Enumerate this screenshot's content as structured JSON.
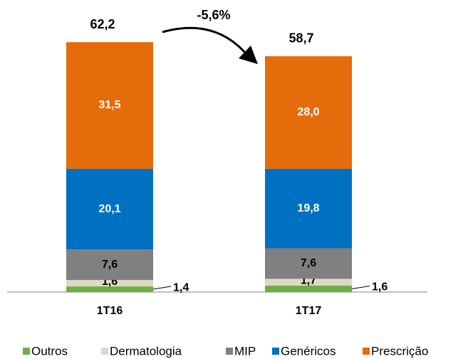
{
  "chart_data": {
    "type": "stacked-bar",
    "categories": [
      "1T16",
      "1T17"
    ],
    "series": [
      {
        "name": "Outros",
        "color": "#70ad47",
        "values": [
          1.4,
          1.6
        ],
        "value_labels": [
          "1,4",
          "1,6"
        ]
      },
      {
        "name": "Dermatologia",
        "color": "#ddd9c3",
        "values": [
          1.6,
          1.7
        ],
        "value_labels": [
          "1,6",
          "1,7"
        ]
      },
      {
        "name": "MIP",
        "color": "#808080",
        "values": [
          7.6,
          7.6
        ],
        "value_labels": [
          "7,6",
          "7,6"
        ]
      },
      {
        "name": "Genéricos",
        "color": "#0070c0",
        "values": [
          20.1,
          19.8
        ],
        "value_labels": [
          "20,1",
          "19,8"
        ]
      },
      {
        "name": "Prescrição",
        "color": "#e46c0a",
        "values": [
          31.5,
          28.0
        ],
        "value_labels": [
          "31,5",
          "28,0"
        ]
      }
    ],
    "totals": {
      "values": [
        62.2,
        58.7
      ],
      "value_labels": [
        "62,2",
        "58,7"
      ]
    },
    "annotation": "-5,6%",
    "legend": "bottom"
  }
}
